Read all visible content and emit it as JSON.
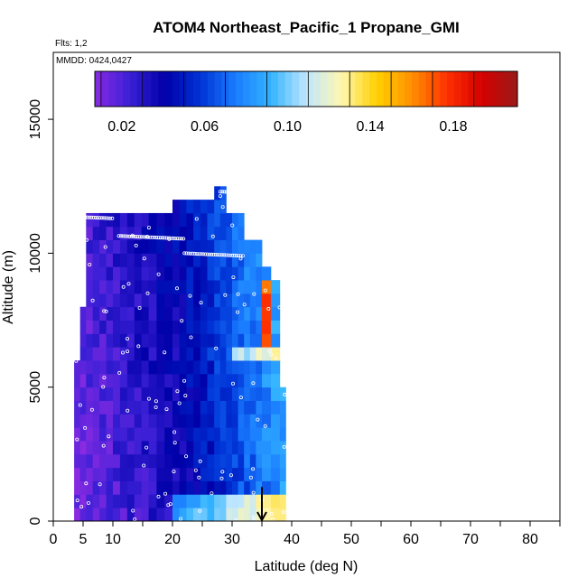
{
  "chart_data": {
    "type": "heatmap",
    "title": "ATOM4 Northeast_Pacific_1 Propane_GMI",
    "annotations": [
      "Flts: 1,2",
      "MMDD: 0424,0427"
    ],
    "xlabel": "Latitude (deg N)",
    "ylabel": "Altitude (m)",
    "xlim": [
      0,
      85
    ],
    "ylim": [
      0,
      17500
    ],
    "x_ticks": [
      0,
      5,
      10,
      20,
      30,
      40,
      50,
      60,
      70,
      80
    ],
    "y_ticks": [
      0,
      5000,
      10000,
      15000
    ],
    "colorbar": {
      "range": [
        0.007,
        0.211
      ],
      "tick_values": [
        0.02,
        0.06,
        0.1,
        0.14,
        0.18
      ],
      "tick_labels": [
        "0.02",
        "0.06",
        "0.10",
        "0.14",
        "0.18"
      ],
      "colors": [
        "#8a2be2",
        "#3a1fd6",
        "#0000a8",
        "#0033d6",
        "#1a7cff",
        "#33b4ff",
        "#bfe6ff",
        "#fff7b0",
        "#ffd000",
        "#ff9000",
        "#ff3000",
        "#d40000",
        "#9a1a1a"
      ]
    },
    "profiles": [
      {
        "lat_min": 3.5,
        "lat_max": 4.5,
        "alt_min": 0,
        "alt_max": 6000
      },
      {
        "lat_min": 4.5,
        "lat_max": 5.5,
        "alt_min": 0,
        "alt_max": 8000
      },
      {
        "lat_min": 5.5,
        "lat_max": 10,
        "alt_min": 0,
        "alt_max": 11500
      },
      {
        "lat_min": 10,
        "lat_max": 16,
        "alt_min": 0,
        "alt_max": 11500
      },
      {
        "lat_min": 16,
        "lat_max": 20,
        "alt_min": 0,
        "alt_max": 11500
      },
      {
        "lat_min": 20,
        "lat_max": 27,
        "alt_min": 0,
        "alt_max": 12000
      },
      {
        "lat_min": 27,
        "lat_max": 29,
        "alt_min": 0,
        "alt_max": 12500
      },
      {
        "lat_min": 29,
        "lat_max": 32,
        "alt_min": 0,
        "alt_max": 11500
      },
      {
        "lat_min": 32,
        "lat_max": 35,
        "alt_min": 0,
        "alt_max": 10500
      },
      {
        "lat_min": 35,
        "lat_max": 36.5,
        "alt_min": 0,
        "alt_max": 9500
      },
      {
        "lat_min": 36.5,
        "lat_max": 38,
        "alt_min": 0,
        "alt_max": 9000
      },
      {
        "lat_min": 38,
        "lat_max": 39,
        "alt_min": 0,
        "alt_max": 5000
      }
    ],
    "marker": {
      "type": "arrow",
      "lat": 35,
      "alt_from": 600,
      "alt_to": 0
    }
  }
}
